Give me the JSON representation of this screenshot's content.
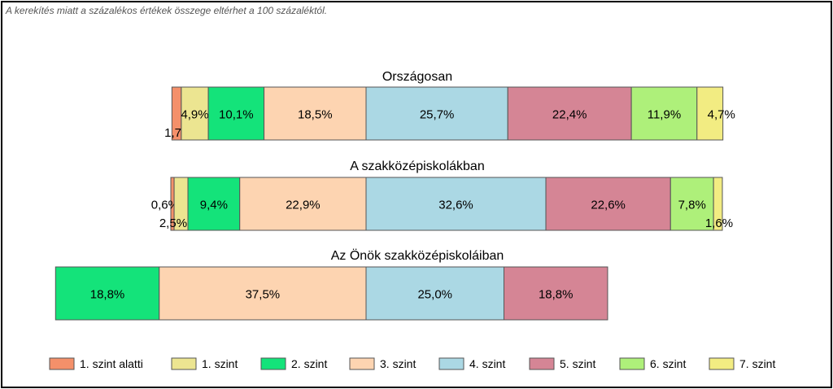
{
  "note": "A kerekítés miatt a  százalékos értékek összege eltérhet a 100 százaléktól.",
  "colors": [
    "#f4906a",
    "#ece591",
    "#14e37a",
    "#fdd4b1",
    "#abd8e4",
    "#d58595",
    "#aef07a",
    "#f2ec82"
  ],
  "chart_data": {
    "type": "bar",
    "orientation": "horizontal",
    "stacked": "100-percent, centered",
    "series": [
      {
        "name": "1. szint alatti"
      },
      {
        "name": "1. szint"
      },
      {
        "name": "2. szint"
      },
      {
        "name": "3. szint"
      },
      {
        "name": "4. szint"
      },
      {
        "name": "5. szint"
      },
      {
        "name": "6. szint"
      },
      {
        "name": "7. szint"
      }
    ],
    "bars": [
      {
        "title": "Országosan",
        "values": [
          1.7,
          4.9,
          10.1,
          18.5,
          25.7,
          22.4,
          11.9,
          4.7
        ],
        "labels": [
          "1,7%",
          "4,9%",
          "10,1%",
          "18,5%",
          "25,7%",
          "22,4%",
          "11,9%",
          "4,7%"
        ]
      },
      {
        "title": "A szakközépiskolákban",
        "values": [
          0.6,
          2.5,
          9.4,
          22.9,
          32.6,
          22.6,
          7.8,
          1.6
        ],
        "labels": [
          "0,6%",
          "2,5%",
          "9,4%",
          "22,9%",
          "32,6%",
          "22,6%",
          "7,8%",
          "1,6%"
        ]
      },
      {
        "title": "Az Önök szakközépiskoláiban",
        "values": [
          0,
          0,
          18.8,
          37.5,
          25.0,
          18.8,
          0,
          0
        ],
        "labels": [
          "",
          "",
          "18,8%",
          "37,5%",
          "25,0%",
          "18,8%",
          "",
          ""
        ]
      }
    ],
    "legend_position": "bottom"
  }
}
